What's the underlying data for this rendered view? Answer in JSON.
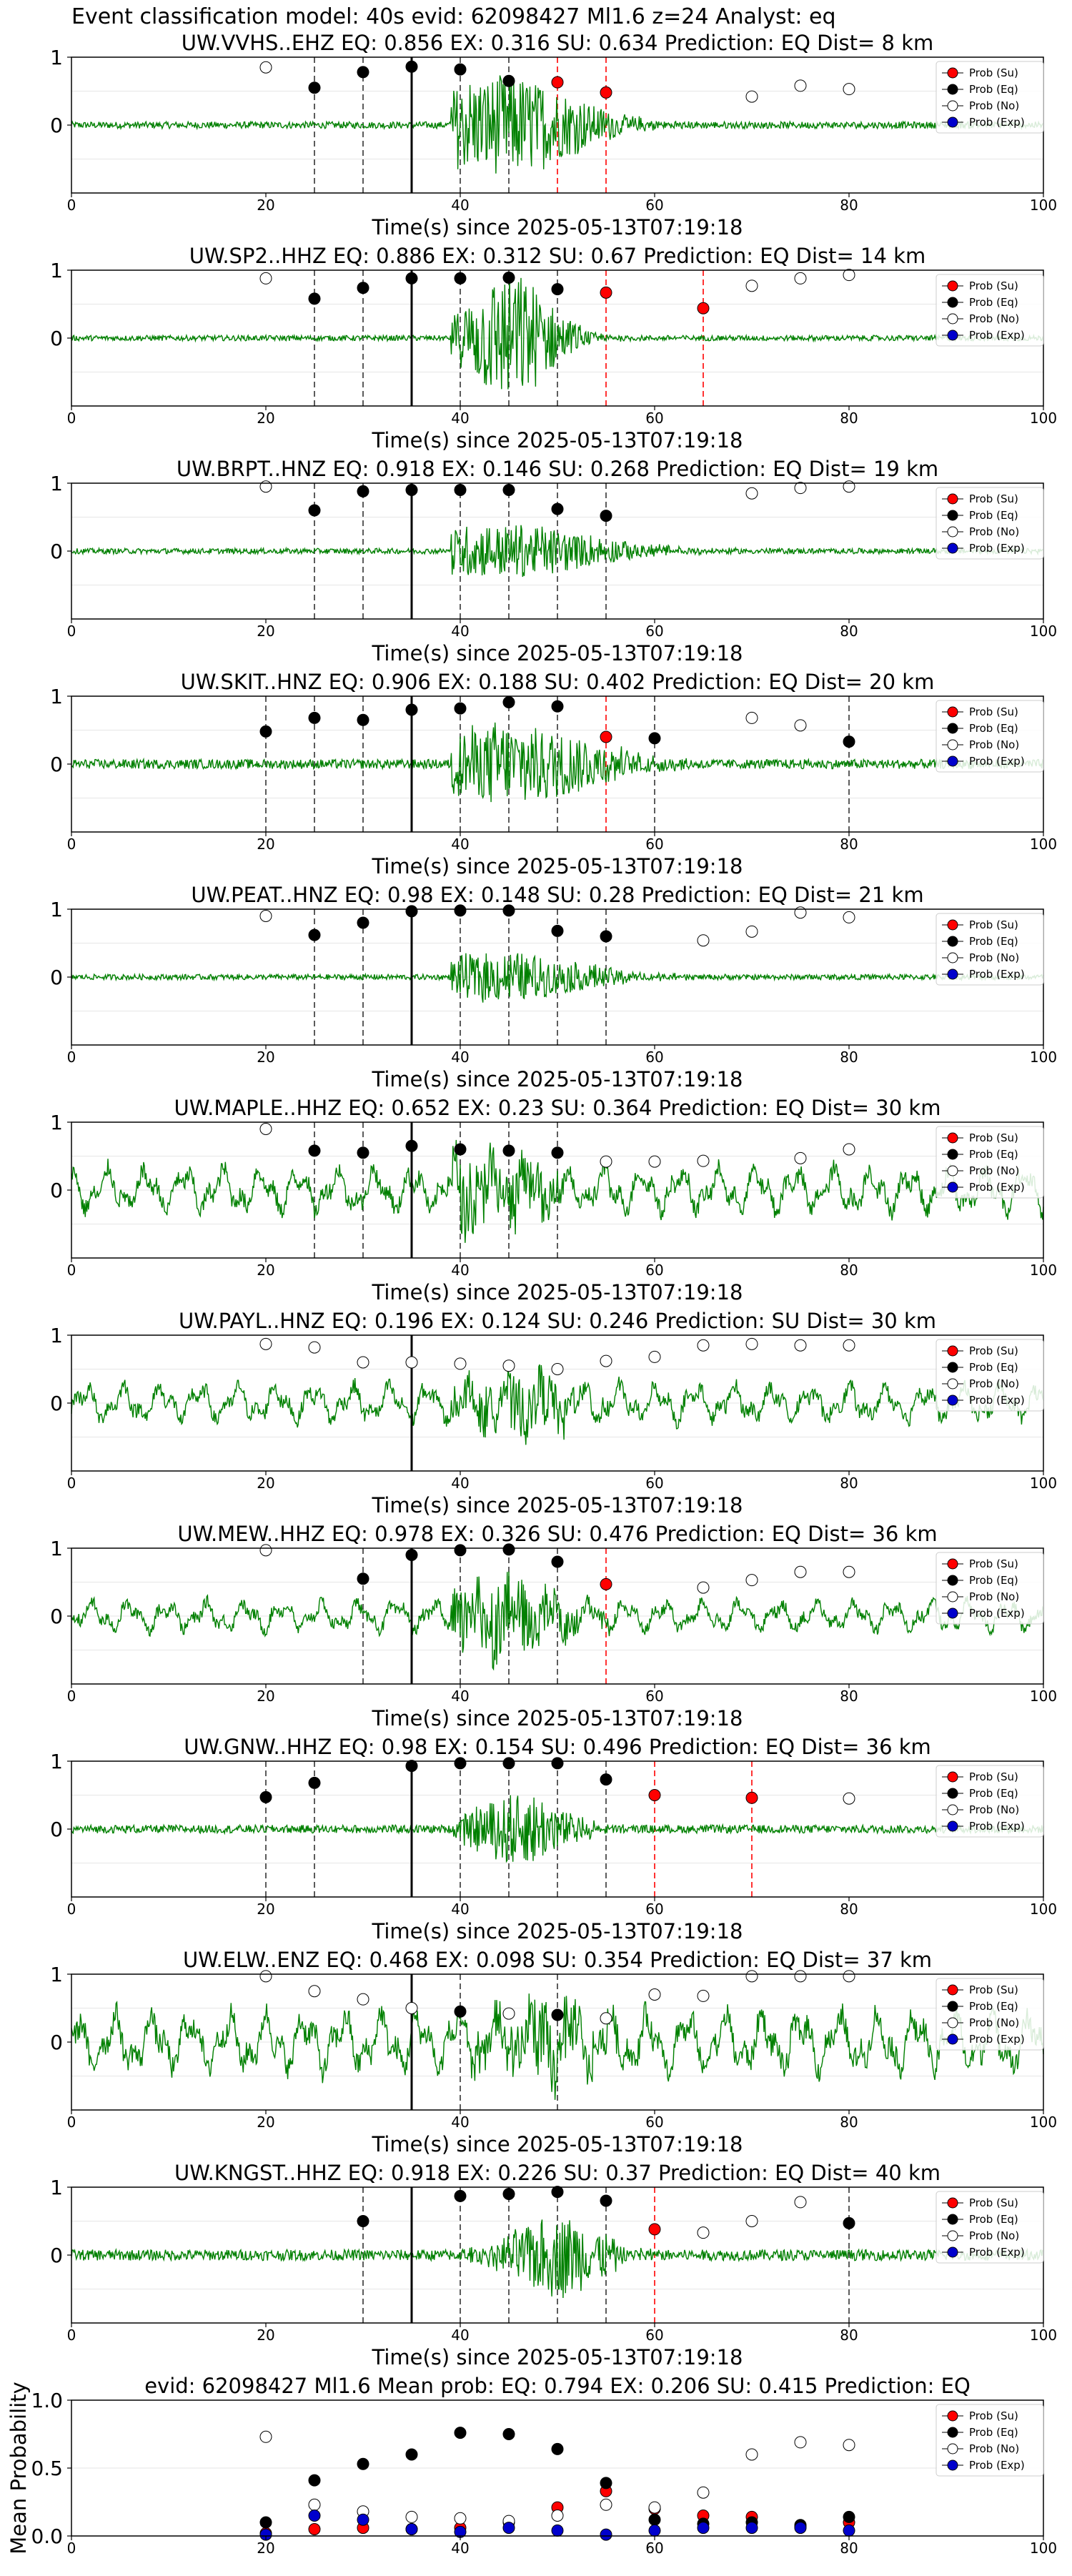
{
  "figure": {
    "suptitle": "Event classification model: 40s evid: 62098427 Ml1.6 z=24 Analyst: eq",
    "xlabel": "Time(s) since 2025-05-13T07:19:18",
    "x_ticks": [
      "0",
      "20",
      "40",
      "60",
      "80",
      "100"
    ],
    "y_ticks": [
      "1",
      "0"
    ],
    "legend": [
      "Prob (Su)",
      "Prob (Eq)",
      "Prob (No)",
      "Prob (Exp)"
    ]
  },
  "colors": {
    "su": "#ff0000",
    "eq": "#000000",
    "no": "#ffffff",
    "exp": "#0000cc",
    "trace": "#008000",
    "marker_edge": "#000000"
  },
  "chart_data": [
    {
      "type": "line",
      "title": "UW.VVHS..EHZ   EQ: 0.856  EX: 0.316  SU: 0.634   Prediction: EQ    Dist= 8 km",
      "xlim": [
        0,
        100
      ],
      "ylim": [
        -1,
        1
      ],
      "pick": 35,
      "noise_amp": 0.05,
      "event_center": 44,
      "event_amp": 0.75,
      "event_width": 7,
      "vlines": [
        {
          "x": 25,
          "c": "eq"
        },
        {
          "x": 30,
          "c": "eq"
        },
        {
          "x": 40,
          "c": "eq"
        },
        {
          "x": 45,
          "c": "eq"
        },
        {
          "x": 50,
          "c": "su"
        },
        {
          "x": 55,
          "c": "su"
        }
      ],
      "points": [
        [
          20,
          "no",
          0.85
        ],
        [
          25,
          "eq",
          0.55
        ],
        [
          30,
          "eq",
          0.78
        ],
        [
          35,
          "eq",
          0.86
        ],
        [
          40,
          "eq",
          0.82
        ],
        [
          45,
          "eq",
          0.65
        ],
        [
          50,
          "su",
          0.63
        ],
        [
          55,
          "su",
          0.48
        ],
        [
          70,
          "no",
          0.42
        ],
        [
          75,
          "no",
          0.58
        ],
        [
          80,
          "no",
          0.53
        ]
      ]
    },
    {
      "type": "line",
      "title": "UW.SP2..HHZ   EQ: 0.886  EX: 0.312  SU: 0.67   Prediction: EQ    Dist= 14 km",
      "xlim": [
        0,
        100
      ],
      "ylim": [
        -1,
        1
      ],
      "pick": 35,
      "noise_amp": 0.04,
      "event_center": 45,
      "event_amp": 0.95,
      "event_width": 4,
      "vlines": [
        {
          "x": 25,
          "c": "eq"
        },
        {
          "x": 30,
          "c": "eq"
        },
        {
          "x": 40,
          "c": "eq"
        },
        {
          "x": 45,
          "c": "eq"
        },
        {
          "x": 50,
          "c": "eq"
        },
        {
          "x": 55,
          "c": "su"
        },
        {
          "x": 65,
          "c": "su"
        }
      ],
      "points": [
        [
          20,
          "no",
          0.88
        ],
        [
          25,
          "eq",
          0.58
        ],
        [
          30,
          "eq",
          0.74
        ],
        [
          35,
          "eq",
          0.88
        ],
        [
          40,
          "eq",
          0.88
        ],
        [
          45,
          "eq",
          0.89
        ],
        [
          50,
          "eq",
          0.72
        ],
        [
          55,
          "su",
          0.67
        ],
        [
          65,
          "su",
          0.44
        ],
        [
          70,
          "no",
          0.77
        ],
        [
          75,
          "no",
          0.88
        ],
        [
          80,
          "no",
          0.93
        ]
      ]
    },
    {
      "type": "line",
      "title": "UW.BRPT..HNZ   EQ: 0.918  EX: 0.146  SU: 0.268   Prediction: EQ    Dist= 19 km",
      "xlim": [
        0,
        100
      ],
      "ylim": [
        -1,
        1
      ],
      "pick": 35,
      "noise_amp": 0.04,
      "event_center": 44,
      "event_amp": 0.4,
      "event_width": 9,
      "vlines": [
        {
          "x": 25,
          "c": "eq"
        },
        {
          "x": 30,
          "c": "eq"
        },
        {
          "x": 40,
          "c": "eq"
        },
        {
          "x": 45,
          "c": "eq"
        },
        {
          "x": 50,
          "c": "eq"
        },
        {
          "x": 55,
          "c": "eq"
        }
      ],
      "points": [
        [
          20,
          "no",
          0.95
        ],
        [
          25,
          "eq",
          0.6
        ],
        [
          30,
          "eq",
          0.88
        ],
        [
          35,
          "eq",
          0.9
        ],
        [
          40,
          "eq",
          0.9
        ],
        [
          45,
          "eq",
          0.9
        ],
        [
          50,
          "eq",
          0.62
        ],
        [
          55,
          "eq",
          0.52
        ],
        [
          70,
          "no",
          0.85
        ],
        [
          75,
          "no",
          0.93
        ],
        [
          80,
          "no",
          0.95
        ]
      ]
    },
    {
      "type": "line",
      "title": "UW.SKIT..HNZ   EQ: 0.906  EX: 0.188  SU: 0.402   Prediction: EQ    Dist= 20 km",
      "xlim": [
        0,
        100
      ],
      "ylim": [
        -1,
        1
      ],
      "pick": 35,
      "noise_amp": 0.07,
      "event_center": 45,
      "event_amp": 0.6,
      "event_width": 8,
      "vlines": [
        {
          "x": 20,
          "c": "eq"
        },
        {
          "x": 25,
          "c": "eq"
        },
        {
          "x": 30,
          "c": "eq"
        },
        {
          "x": 40,
          "c": "eq"
        },
        {
          "x": 45,
          "c": "eq"
        },
        {
          "x": 50,
          "c": "eq"
        },
        {
          "x": 55,
          "c": "su"
        },
        {
          "x": 60,
          "c": "eq"
        },
        {
          "x": 80,
          "c": "eq"
        }
      ],
      "points": [
        [
          20,
          "eq",
          0.48
        ],
        [
          25,
          "eq",
          0.68
        ],
        [
          30,
          "eq",
          0.65
        ],
        [
          35,
          "eq",
          0.8
        ],
        [
          40,
          "eq",
          0.82
        ],
        [
          45,
          "eq",
          0.91
        ],
        [
          50,
          "eq",
          0.85
        ],
        [
          55,
          "su",
          0.4
        ],
        [
          60,
          "eq",
          0.38
        ],
        [
          70,
          "no",
          0.68
        ],
        [
          75,
          "no",
          0.57
        ],
        [
          80,
          "eq",
          0.33
        ]
      ]
    },
    {
      "type": "line",
      "title": "UW.PEAT..HNZ   EQ: 0.98  EX: 0.148  SU: 0.28   Prediction: EQ    Dist= 21 km",
      "xlim": [
        0,
        100
      ],
      "ylim": [
        -1,
        1
      ],
      "pick": 35,
      "noise_amp": 0.04,
      "event_center": 44,
      "event_amp": 0.35,
      "event_width": 8,
      "vlines": [
        {
          "x": 25,
          "c": "eq"
        },
        {
          "x": 30,
          "c": "eq"
        },
        {
          "x": 40,
          "c": "eq"
        },
        {
          "x": 45,
          "c": "eq"
        },
        {
          "x": 50,
          "c": "eq"
        },
        {
          "x": 55,
          "c": "eq"
        }
      ],
      "points": [
        [
          20,
          "no",
          0.9
        ],
        [
          25,
          "eq",
          0.62
        ],
        [
          30,
          "eq",
          0.8
        ],
        [
          35,
          "eq",
          0.97
        ],
        [
          40,
          "eq",
          0.98
        ],
        [
          45,
          "eq",
          0.98
        ],
        [
          50,
          "eq",
          0.68
        ],
        [
          55,
          "eq",
          0.6
        ],
        [
          65,
          "no",
          0.54
        ],
        [
          70,
          "no",
          0.67
        ],
        [
          75,
          "no",
          0.95
        ],
        [
          80,
          "no",
          0.88
        ]
      ]
    },
    {
      "type": "line",
      "title": "UW.MAPLE..HHZ   EQ: 0.652  EX: 0.23  SU: 0.364   Prediction: EQ    Dist= 30 km",
      "xlim": [
        0,
        100
      ],
      "ylim": [
        -1,
        1
      ],
      "pick": 35,
      "noise_amp": 0.3,
      "event_center": 42,
      "event_amp": 0.5,
      "event_width": 6,
      "vlines": [
        {
          "x": 25,
          "c": "eq"
        },
        {
          "x": 30,
          "c": "eq"
        },
        {
          "x": 40,
          "c": "eq"
        },
        {
          "x": 45,
          "c": "eq"
        },
        {
          "x": 50,
          "c": "eq"
        }
      ],
      "points": [
        [
          20,
          "no",
          0.9
        ],
        [
          25,
          "eq",
          0.58
        ],
        [
          30,
          "eq",
          0.55
        ],
        [
          35,
          "eq",
          0.65
        ],
        [
          40,
          "eq",
          0.6
        ],
        [
          45,
          "eq",
          0.58
        ],
        [
          50,
          "eq",
          0.55
        ],
        [
          55,
          "no",
          0.42
        ],
        [
          60,
          "no",
          0.42
        ],
        [
          65,
          "no",
          0.43
        ],
        [
          75,
          "no",
          0.47
        ],
        [
          80,
          "no",
          0.6
        ]
      ]
    },
    {
      "type": "line",
      "title": "UW.PAYL..HNZ   EQ: 0.196  EX: 0.124  SU: 0.246   Prediction: SU    Dist= 30 km",
      "xlim": [
        0,
        100
      ],
      "ylim": [
        -1,
        1
      ],
      "pick": 35,
      "noise_amp": 0.25,
      "event_center": 46,
      "event_amp": 0.4,
      "event_width": 5,
      "vlines": [],
      "points": [
        [
          20,
          "no",
          0.87
        ],
        [
          25,
          "no",
          0.82
        ],
        [
          30,
          "no",
          0.6
        ],
        [
          35,
          "no",
          0.6
        ],
        [
          40,
          "no",
          0.58
        ],
        [
          45,
          "no",
          0.55
        ],
        [
          50,
          "no",
          0.5
        ],
        [
          55,
          "no",
          0.62
        ],
        [
          60,
          "no",
          0.68
        ],
        [
          65,
          "no",
          0.85
        ],
        [
          70,
          "no",
          0.87
        ],
        [
          75,
          "no",
          0.85
        ],
        [
          80,
          "no",
          0.85
        ]
      ]
    },
    {
      "type": "line",
      "title": "UW.MEW..HHZ   EQ: 0.978  EX: 0.326  SU: 0.476   Prediction: EQ    Dist= 36 km",
      "xlim": [
        0,
        100
      ],
      "ylim": [
        -1,
        1
      ],
      "pick": 35,
      "noise_amp": 0.2,
      "event_center": 43,
      "event_amp": 0.6,
      "event_width": 6,
      "vlines": [
        {
          "x": 30,
          "c": "eq"
        },
        {
          "x": 40,
          "c": "eq"
        },
        {
          "x": 45,
          "c": "eq"
        },
        {
          "x": 50,
          "c": "eq"
        },
        {
          "x": 55,
          "c": "su"
        }
      ],
      "points": [
        [
          20,
          "no",
          0.97
        ],
        [
          30,
          "eq",
          0.55
        ],
        [
          35,
          "eq",
          0.9
        ],
        [
          40,
          "eq",
          0.97
        ],
        [
          45,
          "eq",
          0.98
        ],
        [
          50,
          "eq",
          0.8
        ],
        [
          55,
          "su",
          0.47
        ],
        [
          65,
          "no",
          0.42
        ],
        [
          70,
          "no",
          0.53
        ],
        [
          75,
          "no",
          0.65
        ],
        [
          80,
          "no",
          0.65
        ]
      ]
    },
    {
      "type": "line",
      "title": "UW.GNW..HHZ   EQ: 0.98  EX: 0.154  SU: 0.496   Prediction: EQ    Dist= 36 km",
      "xlim": [
        0,
        100
      ],
      "ylim": [
        -1,
        1
      ],
      "pick": 35,
      "noise_amp": 0.06,
      "event_center": 46,
      "event_amp": 0.55,
      "event_width": 4,
      "vlines": [
        {
          "x": 20,
          "c": "eq"
        },
        {
          "x": 25,
          "c": "eq"
        },
        {
          "x": 40,
          "c": "eq"
        },
        {
          "x": 45,
          "c": "eq"
        },
        {
          "x": 50,
          "c": "eq"
        },
        {
          "x": 55,
          "c": "eq"
        },
        {
          "x": 60,
          "c": "su"
        },
        {
          "x": 70,
          "c": "su"
        }
      ],
      "points": [
        [
          20,
          "eq",
          0.47
        ],
        [
          25,
          "eq",
          0.68
        ],
        [
          35,
          "eq",
          0.93
        ],
        [
          40,
          "eq",
          0.97
        ],
        [
          45,
          "eq",
          0.97
        ],
        [
          50,
          "eq",
          0.97
        ],
        [
          55,
          "eq",
          0.73
        ],
        [
          60,
          "su",
          0.5
        ],
        [
          70,
          "su",
          0.46
        ],
        [
          80,
          "no",
          0.45
        ]
      ]
    },
    {
      "type": "line",
      "title": "UW.ELW..ENZ   EQ: 0.468  EX: 0.098  SU: 0.354   Prediction: EQ    Dist= 37 km",
      "xlim": [
        0,
        100
      ],
      "ylim": [
        -1,
        1
      ],
      "pick": 35,
      "noise_amp": 0.4,
      "event_center": 48,
      "event_amp": 0.45,
      "event_width": 5,
      "vlines": [
        {
          "x": 40,
          "c": "eq"
        },
        {
          "x": 50,
          "c": "eq"
        }
      ],
      "points": [
        [
          20,
          "no",
          0.97
        ],
        [
          25,
          "no",
          0.75
        ],
        [
          30,
          "no",
          0.63
        ],
        [
          35,
          "no",
          0.5
        ],
        [
          40,
          "eq",
          0.45
        ],
        [
          45,
          "no",
          0.42
        ],
        [
          50,
          "eq",
          0.4
        ],
        [
          55,
          "no",
          0.35
        ],
        [
          60,
          "no",
          0.7
        ],
        [
          65,
          "no",
          0.68
        ],
        [
          70,
          "no",
          0.97
        ],
        [
          75,
          "no",
          0.97
        ],
        [
          80,
          "no",
          0.97
        ]
      ]
    },
    {
      "type": "line",
      "title": "UW.KNGST..HHZ   EQ: 0.918  EX: 0.226  SU: 0.37   Prediction: EQ    Dist= 40 km",
      "xlim": [
        0,
        100
      ],
      "ylim": [
        -1,
        1
      ],
      "pick": 35,
      "noise_amp": 0.08,
      "event_center": 50,
      "event_amp": 0.6,
      "event_width": 4,
      "vlines": [
        {
          "x": 30,
          "c": "eq"
        },
        {
          "x": 40,
          "c": "eq"
        },
        {
          "x": 45,
          "c": "eq"
        },
        {
          "x": 50,
          "c": "eq"
        },
        {
          "x": 55,
          "c": "eq"
        },
        {
          "x": 60,
          "c": "su"
        },
        {
          "x": 80,
          "c": "eq"
        }
      ],
      "points": [
        [
          30,
          "eq",
          0.5
        ],
        [
          40,
          "eq",
          0.87
        ],
        [
          45,
          "eq",
          0.9
        ],
        [
          50,
          "eq",
          0.93
        ],
        [
          55,
          "eq",
          0.8
        ],
        [
          60,
          "su",
          0.38
        ],
        [
          65,
          "no",
          0.33
        ],
        [
          70,
          "no",
          0.5
        ],
        [
          75,
          "no",
          0.78
        ],
        [
          80,
          "eq",
          0.47
        ]
      ]
    },
    {
      "type": "scatter",
      "title": "evid: 62098427  Ml1.6   Mean prob:   EQ: 0.794  EX: 0.206  SU: 0.415   Prediction: EQ",
      "ylabel": "Mean Probability",
      "xlim": [
        0,
        100
      ],
      "ylim": [
        0,
        1
      ],
      "y_ticks": [
        "1.0",
        "0.5",
        "0.0"
      ],
      "x": [
        20,
        25,
        30,
        35,
        40,
        45,
        50,
        55,
        60,
        65,
        70,
        75,
        80
      ],
      "series": [
        {
          "name": "Prob (Su)",
          "c": "su",
          "values": [
            0.02,
            0.05,
            0.06,
            0.05,
            0.06,
            0.1,
            0.21,
            0.33,
            0.2,
            0.15,
            0.14,
            0.07,
            0.1
          ]
        },
        {
          "name": "Prob (Eq)",
          "c": "eq",
          "values": [
            0.1,
            0.41,
            0.53,
            0.6,
            0.76,
            0.75,
            0.64,
            0.39,
            0.12,
            0.09,
            0.1,
            0.08,
            0.14
          ]
        },
        {
          "name": "Prob (No)",
          "c": "no",
          "values": [
            0.73,
            0.23,
            0.18,
            0.14,
            0.13,
            0.11,
            0.15,
            0.23,
            0.21,
            0.32,
            0.6,
            0.69,
            0.67
          ]
        },
        {
          "name": "Prob (Exp)",
          "c": "exp",
          "values": [
            0.01,
            0.15,
            0.12,
            0.05,
            0.03,
            0.06,
            0.04,
            0.01,
            0.04,
            0.06,
            0.06,
            0.06,
            0.04
          ]
        }
      ]
    }
  ]
}
